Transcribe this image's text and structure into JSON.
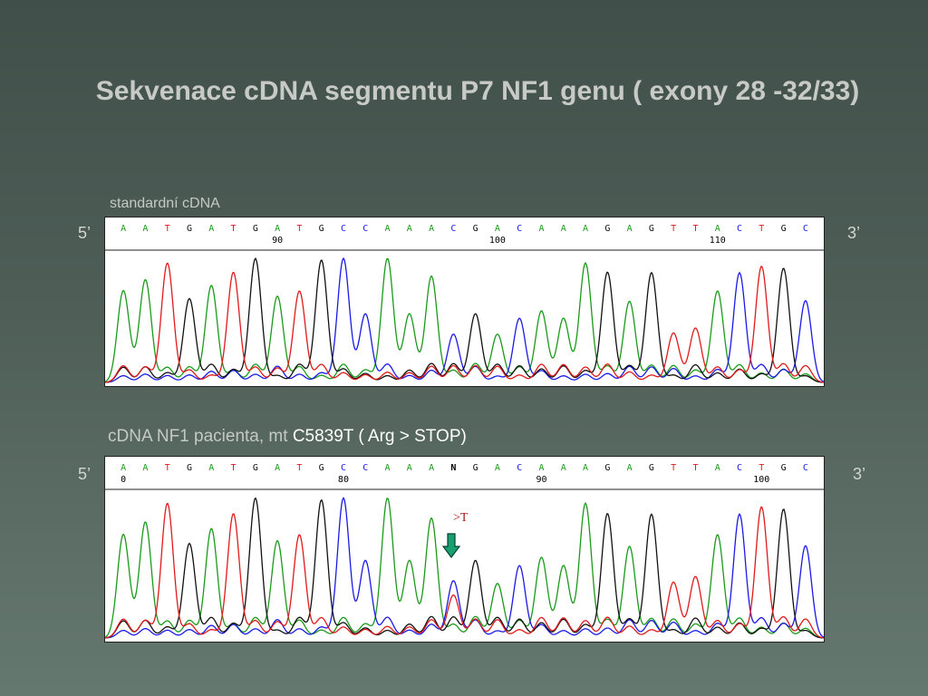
{
  "slide": {
    "title": "Sekvenace cDNA segmentu P7  NF1 genu ( exony 28 -32/33)",
    "caption_standard": "standardní cDNA",
    "caption_patient": "cDNA NF1 pacienta, mt",
    "caption_mutation": "C5839T ( Arg > STOP)",
    "label_5prime": "5’",
    "label_3prime": "3’",
    "substitution_label": ">T"
  },
  "colors": {
    "A": "#1a9a1a",
    "C": "#1a1ae6",
    "G": "#111111",
    "T": "#e01a1a",
    "N": "#000000",
    "arrow": "#18a070"
  },
  "chart_data": [
    {
      "type": "line",
      "name": "standardní cDNA",
      "sequence": [
        "A",
        "A",
        "T",
        "G",
        "A",
        "T",
        "G",
        "A",
        "T",
        "G",
        "C",
        "C",
        "A",
        "A",
        "A",
        "C",
        "G",
        "A",
        "C",
        "A",
        "A",
        "A",
        "G",
        "A",
        "G",
        "T",
        "T",
        "A",
        "C",
        "T",
        "G",
        "C"
      ],
      "position_ticks": [
        {
          "label": "90",
          "index": 7
        },
        {
          "label": "100",
          "index": 17
        },
        {
          "label": "110",
          "index": 27
        }
      ]
    },
    {
      "type": "line",
      "name": "cDNA NF1 pacienta, mt",
      "sequence": [
        "A",
        "A",
        "T",
        "G",
        "A",
        "T",
        "G",
        "A",
        "T",
        "G",
        "C",
        "C",
        "A",
        "A",
        "A",
        "N",
        "G",
        "A",
        "C",
        "A",
        "A",
        "A",
        "G",
        "A",
        "G",
        "T",
        "T",
        "A",
        "C",
        "T",
        "G",
        "C"
      ],
      "position_ticks": [
        {
          "label": "0",
          "index": 0
        },
        {
          "label": "80",
          "index": 10
        },
        {
          "label": "90",
          "index": 19
        },
        {
          "label": "100",
          "index": 29
        }
      ],
      "mutation_index": 15
    }
  ]
}
